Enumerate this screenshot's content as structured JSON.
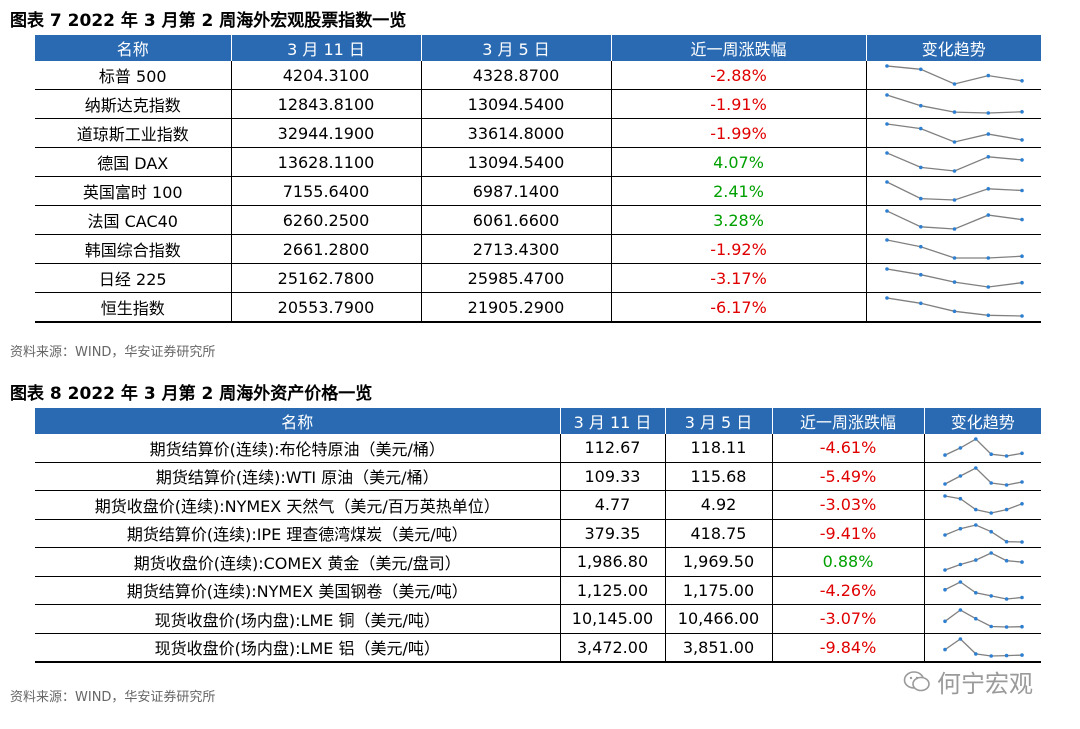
{
  "table1": {
    "title": "图表 7  2022 年 3 月第 2 周海外宏观股票指数一览",
    "headers": [
      "名称",
      "3 月 11 日",
      "3 月 5 日",
      "近一周涨跌幅",
      "变化趋势"
    ],
    "rows": [
      {
        "name": "标普 500",
        "d1": "4204.3100",
        "d2": "4328.8700",
        "chg": "-2.88%",
        "dir": "neg",
        "trend": [
          4363,
          4328,
          4170,
          4260,
          4204
        ]
      },
      {
        "name": "纳斯达克指数",
        "d1": "12843.8100",
        "d2": "13094.5400",
        "chg": "-1.91%",
        "dir": "neg",
        "trend": [
          13532,
          13094,
          12830,
          12795,
          12843
        ]
      },
      {
        "name": "道琼斯工业指数",
        "d1": "32944.1900",
        "d2": "33614.8000",
        "chg": "-1.99%",
        "dir": "neg",
        "trend": [
          33890,
          33614,
          32817,
          33286,
          32944
        ]
      },
      {
        "name": "德国 DAX",
        "d1": "13628.1100",
        "d2": "13094.5400",
        "chg": "4.07%",
        "dir": "pos",
        "trend": [
          14120,
          13094,
          12835,
          13848,
          13628
        ]
      },
      {
        "name": "英国富时 100",
        "d1": "7155.6400",
        "d2": "6987.1400",
        "chg": "2.41%",
        "dir": "pos",
        "trend": [
          7330,
          6987,
          6959,
          7190,
          7155
        ]
      },
      {
        "name": "法国 CAC40",
        "d1": "6260.2500",
        "d2": "6061.6600",
        "chg": "3.28%",
        "dir": "pos",
        "trend": [
          6500,
          6061,
          6000,
          6387,
          6260
        ]
      },
      {
        "name": "韩国综合指数",
        "d1": "2661.2800",
        "d2": "2713.4300",
        "chg": "-1.92%",
        "dir": "neg",
        "trend": [
          2750,
          2713,
          2651,
          2651,
          2661
        ]
      },
      {
        "name": "日经 225",
        "d1": "25162.7800",
        "d2": "25985.4700",
        "chg": "-3.17%",
        "dir": "neg",
        "trend": [
          26577,
          25985,
          25221,
          24717,
          25162
        ]
      },
      {
        "name": "恒生指数",
        "d1": "20553.7900",
        "d2": "21905.2900",
        "chg": "-6.17%",
        "dir": "neg",
        "trend": [
          22467,
          21905,
          21057,
          20627,
          20553
        ]
      }
    ],
    "source": "资料来源：WIND，华安证券研究所"
  },
  "table2": {
    "title": "图表 8  2022 年 3 月第 2 周海外资产价格一览",
    "headers": [
      "名称",
      "3 月 11 日",
      "3 月 5 日",
      "近一周涨跌幅",
      "变化趋势"
    ],
    "rows": [
      {
        "name": "期货结算价(连续):布伦特原油（美元/桶）",
        "d1": "112.67",
        "d2": "118.11",
        "chg": "-4.61%",
        "dir": "neg",
        "trend": [
          110,
          118,
          128,
          111,
          109,
          112
        ]
      },
      {
        "name": "期货结算价(连续):WTI 原油（美元/桶）",
        "d1": "109.33",
        "d2": "115.68",
        "chg": "-5.49%",
        "dir": "neg",
        "trend": [
          107,
          115,
          123,
          108,
          106,
          109
        ]
      },
      {
        "name": "期货收盘价(连续):NYMEX 天然气（美元/百万英热单位）",
        "d1": "4.77",
        "d2": "4.92",
        "chg": "-3.03%",
        "dir": "neg",
        "trend": [
          5.0,
          4.92,
          4.6,
          4.5,
          4.6,
          4.77
        ]
      },
      {
        "name": "期货结算价(连续):IPE 理查德湾煤炭（美元/吨）",
        "d1": "379.35",
        "d2": "418.75",
        "chg": "-9.41%",
        "dir": "neg",
        "trend": [
          400,
          419,
          430,
          410,
          380,
          379
        ]
      },
      {
        "name": "期货收盘价(连续):COMEX 黄金（美元/盘司）",
        "d1": "1,986.80",
        "d2": "1,969.50",
        "chg": "0.88%",
        "dir": "pos",
        "trend": [
          1930,
          1969,
          2000,
          2050,
          1996,
          1986
        ]
      },
      {
        "name": "期货结算价(连续):NYMEX 美国钢卷（美元/吨）",
        "d1": "1,125.00",
        "d2": "1,175.00",
        "chg": "-4.26%",
        "dir": "neg",
        "trend": [
          1150,
          1175,
          1140,
          1130,
          1120,
          1125
        ]
      },
      {
        "name": "现货收盘价(场内盘):LME 铜（美元/吨）",
        "d1": "10,145.00",
        "d2": "10,466.00",
        "chg": "-3.07%",
        "dir": "neg",
        "trend": [
          10250,
          10466,
          10300,
          10150,
          10140,
          10145
        ]
      },
      {
        "name": "现货收盘价(场内盘):LME 铝（美元/吨）",
        "d1": "3,472.00",
        "d2": "3,851.00",
        "chg": "-9.84%",
        "dir": "neg",
        "trend": [
          3600,
          3851,
          3500,
          3450,
          3460,
          3472
        ]
      }
    ],
    "source": "资料来源：WIND，华安证券研究所"
  },
  "colors": {
    "header_bg": "#2a6ab2",
    "negative": "#e00000",
    "positive": "#00a000",
    "spark_line": "#808080",
    "spark_dot": "#2f7fd0"
  },
  "watermark": {
    "icon": "wechat-icon",
    "text": "何宁宏观"
  }
}
